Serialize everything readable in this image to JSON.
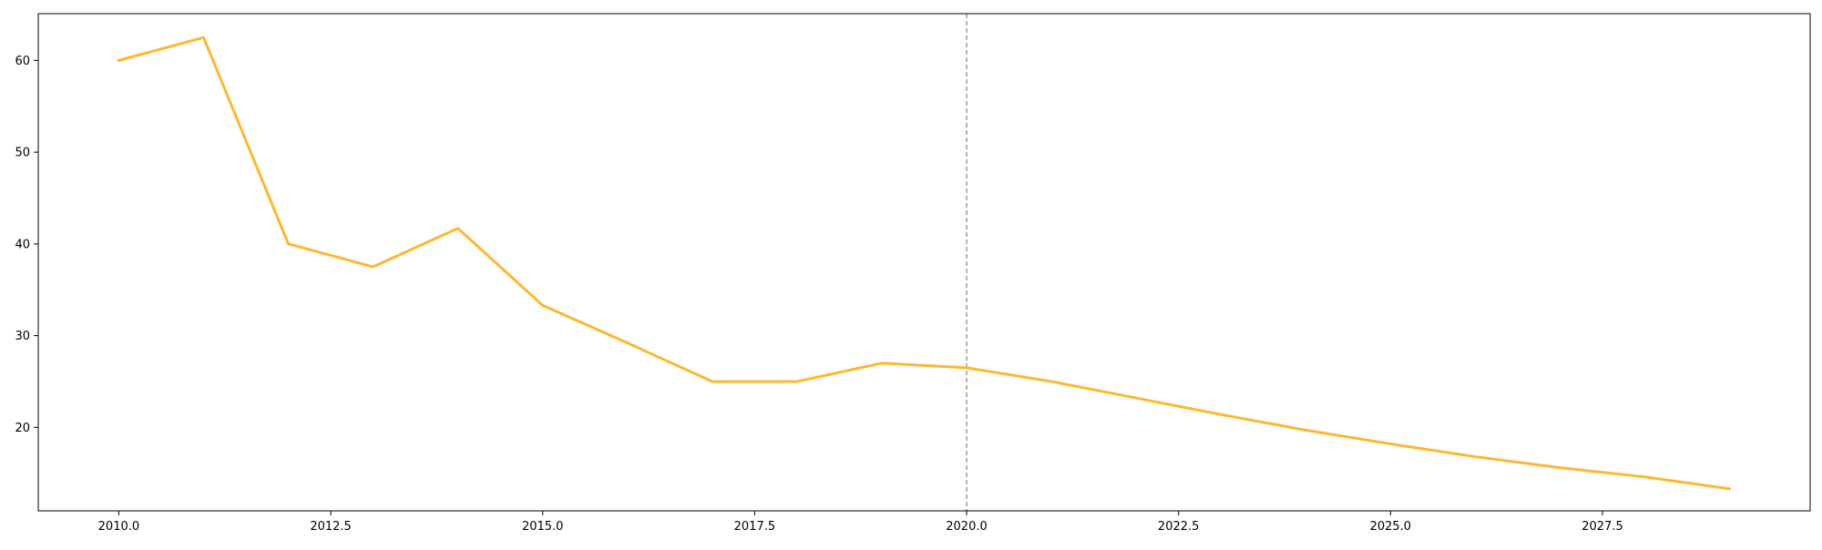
{
  "chart_data": {
    "type": "line",
    "title": "",
    "xlabel": "",
    "ylabel": "",
    "xlim": [
      2009.05,
      2029.95
    ],
    "ylim": [
      10.9,
      65.1
    ],
    "xticks": [
      2010.0,
      2012.5,
      2015.0,
      2017.5,
      2020.0,
      2022.5,
      2025.0,
      2027.5
    ],
    "xtick_labels": [
      "2010.0",
      "2012.5",
      "2015.0",
      "2017.5",
      "2020.0",
      "2022.5",
      "2025.0",
      "2027.5"
    ],
    "yticks": [
      20,
      30,
      40,
      50,
      60
    ],
    "ytick_labels": [
      "20",
      "30",
      "40",
      "50",
      "60"
    ],
    "grid": false,
    "legend": "none",
    "reference_lines": [
      {
        "axis": "x",
        "value": 2020,
        "style": "dashed",
        "color": "#808080"
      }
    ],
    "series": [
      {
        "color": "#FDB731",
        "x": [
          2010,
          2011,
          2012,
          2013,
          2014,
          2015,
          2016,
          2017,
          2018,
          2019,
          2020,
          2021,
          2022,
          2023,
          2024,
          2025,
          2026,
          2027,
          2028,
          2029
        ],
        "y": [
          60.0,
          62.5,
          40.0,
          37.5,
          41.7,
          33.3,
          29.2,
          25.0,
          25.0,
          27.0,
          26.5,
          25.0,
          23.2,
          21.4,
          19.7,
          18.2,
          16.8,
          15.6,
          14.6,
          13.3
        ]
      }
    ]
  }
}
